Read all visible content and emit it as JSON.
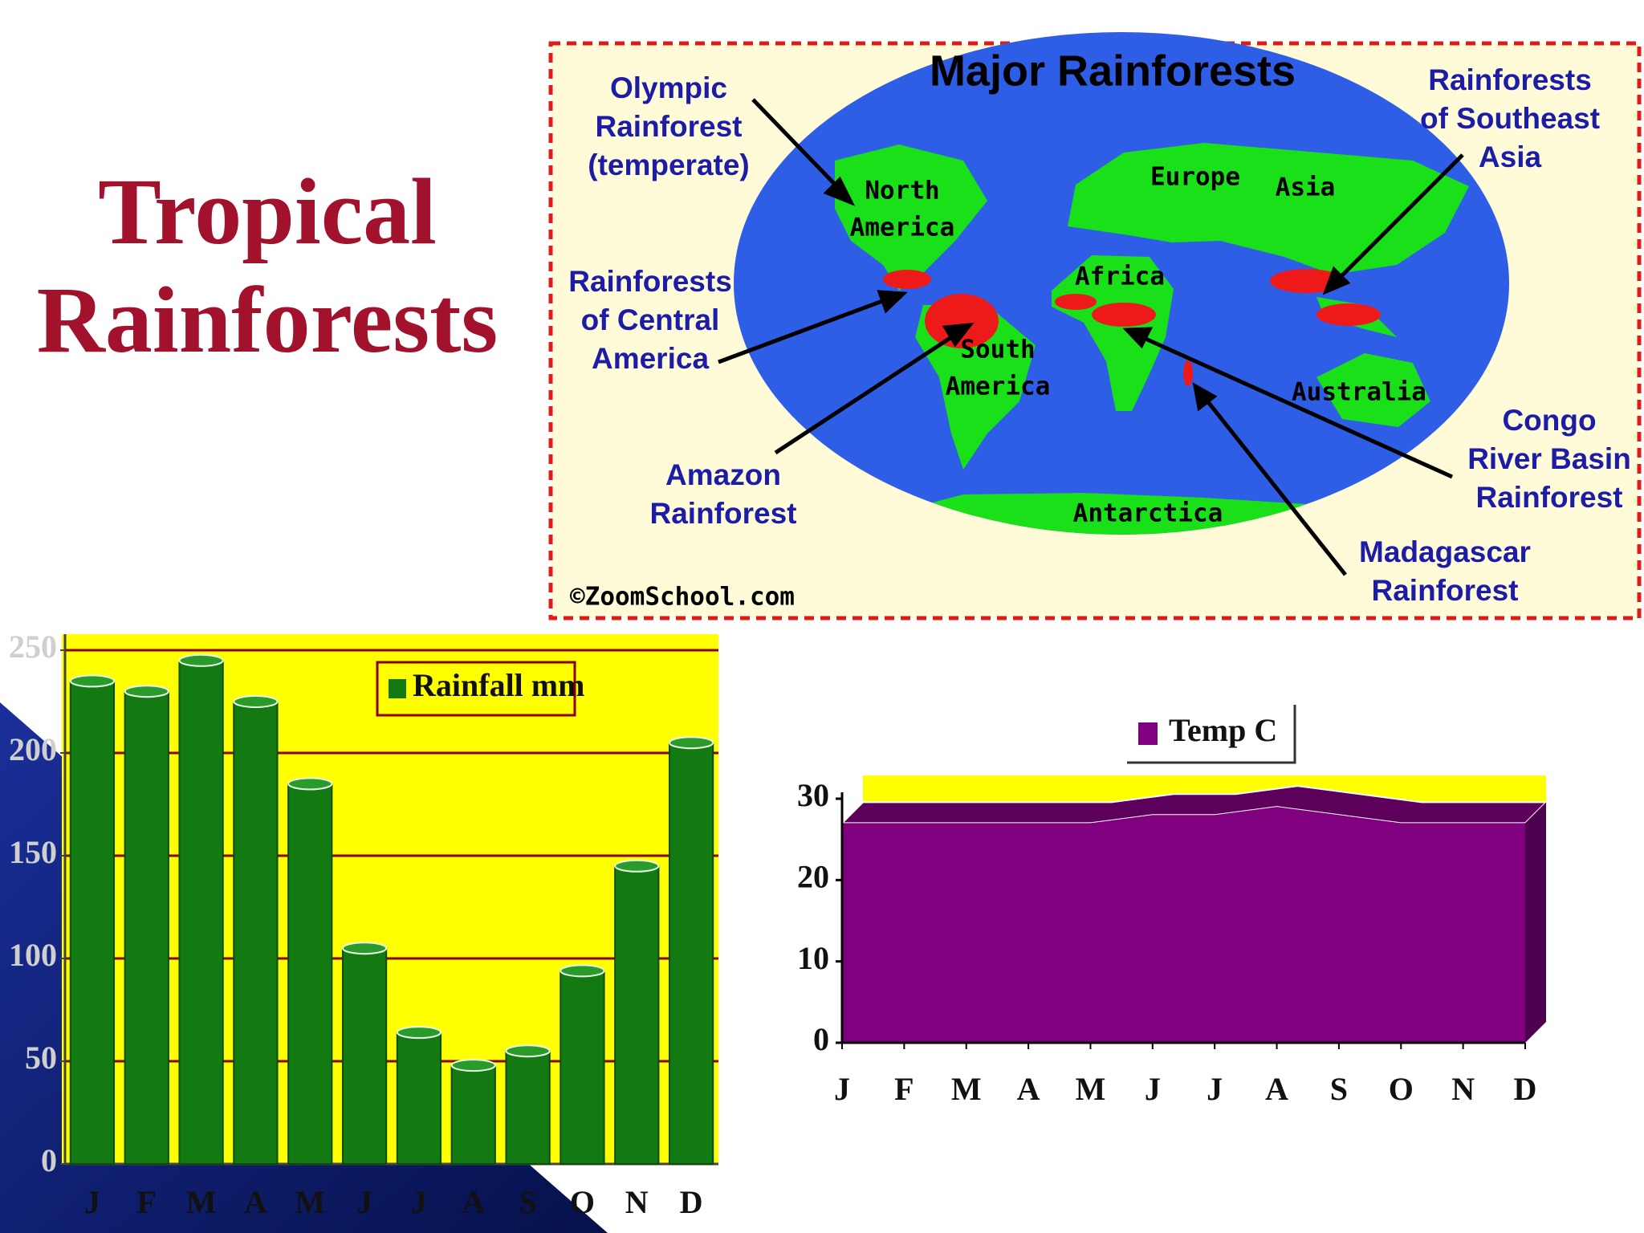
{
  "title_lines": [
    "Tropical",
    "Rainforests"
  ],
  "map": {
    "title": "Major Rainforests",
    "credit": "©ZoomSchool.com",
    "callouts": [
      {
        "lines": [
          "Olympic",
          "Rainforest",
          "(temperate)"
        ]
      },
      {
        "lines": [
          "Rainforests",
          "of Central",
          "America"
        ]
      },
      {
        "lines": [
          "Amazon",
          "Rainforest"
        ]
      },
      {
        "lines": [
          "Rainforests",
          "of Southeast",
          "Asia"
        ]
      },
      {
        "lines": [
          "Congo",
          "River Basin",
          "Rainforest"
        ]
      },
      {
        "lines": [
          "Madagascar",
          "Rainforest"
        ]
      }
    ],
    "regions": [
      {
        "lines": [
          "North",
          "America"
        ]
      },
      {
        "lines": [
          "Europe"
        ]
      },
      {
        "lines": [
          "Asia"
        ]
      },
      {
        "lines": [
          "Africa"
        ]
      },
      {
        "lines": [
          "South",
          "America"
        ]
      },
      {
        "lines": [
          "Australia"
        ]
      },
      {
        "lines": [
          "Antarctica"
        ]
      }
    ]
  },
  "chart_data": [
    {
      "type": "bar",
      "categories": [
        "J",
        "F",
        "M",
        "A",
        "M",
        "J",
        "J",
        "A",
        "S",
        "O",
        "N",
        "D"
      ],
      "series": [
        {
          "name": "Rainfall mm",
          "color": "#137a13",
          "values": [
            235,
            230,
            245,
            225,
            185,
            105,
            64,
            48,
            55,
            94,
            145,
            205
          ]
        }
      ],
      "ylim": [
        0,
        250
      ],
      "yticks": [
        0,
        50,
        100,
        150,
        200,
        250
      ],
      "grid": true,
      "plot_background": "#ffff00",
      "legend": "top-right"
    },
    {
      "type": "area",
      "categories": [
        "J",
        "F",
        "M",
        "A",
        "M",
        "J",
        "J",
        "A",
        "S",
        "O",
        "N",
        "D"
      ],
      "series": [
        {
          "name": "Temp C",
          "color": "#800080",
          "values": [
            27,
            27,
            27,
            27,
            27,
            28,
            28,
            29,
            28,
            27,
            27,
            27
          ]
        }
      ],
      "ylim": [
        0,
        30
      ],
      "yticks": [
        0,
        10,
        20,
        30
      ],
      "plot_background": "#ffff00",
      "legend": "top-center"
    }
  ]
}
